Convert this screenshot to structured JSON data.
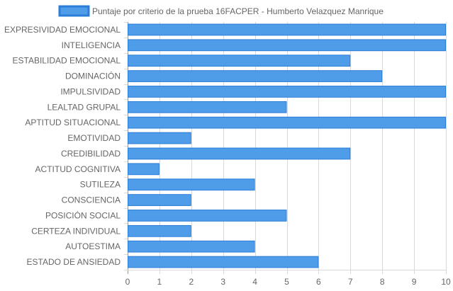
{
  "chart_data": {
    "type": "bar",
    "orientation": "horizontal",
    "categories": [
      "EXPRESIVIDAD EMOCIONAL",
      "INTELIGENCIA",
      "ESTABILIDAD EMOCIONAL",
      "DOMINACIÓN",
      "IMPULSIVIDAD",
      "LEALTAD GRUPAL",
      "APTITUD SITUACIONAL",
      "EMOTIVIDAD",
      "CREDIBILIDAD",
      "ACTITUD COGNITIVA",
      "SUTILEZA",
      "CONSCIENCIA",
      "POSICIÓN SOCIAL",
      "CERTEZA INDIVIDUAL",
      "AUTOESTIMA",
      "ESTADO DE ANSIEDAD"
    ],
    "series": [
      {
        "name": "Puntaje por criterio de la prueba 16FACPER - Humberto  Velazquez Manrique",
        "values": [
          10,
          10,
          7,
          8,
          10,
          5,
          10,
          2,
          7,
          1,
          4,
          2,
          5,
          2,
          4,
          6
        ]
      }
    ],
    "xlim": [
      0,
      10
    ],
    "x_ticks": [
      "0",
      "1",
      "2",
      "3",
      "4",
      "5",
      "6",
      "7",
      "8",
      "9",
      "10"
    ],
    "grid": true,
    "legend_position": "top-center",
    "colors": {
      "bar_fill": "#4f9ce8",
      "bar_border": "#2a7ed8",
      "grid": "#d9d9d9",
      "text": "#666666"
    }
  }
}
